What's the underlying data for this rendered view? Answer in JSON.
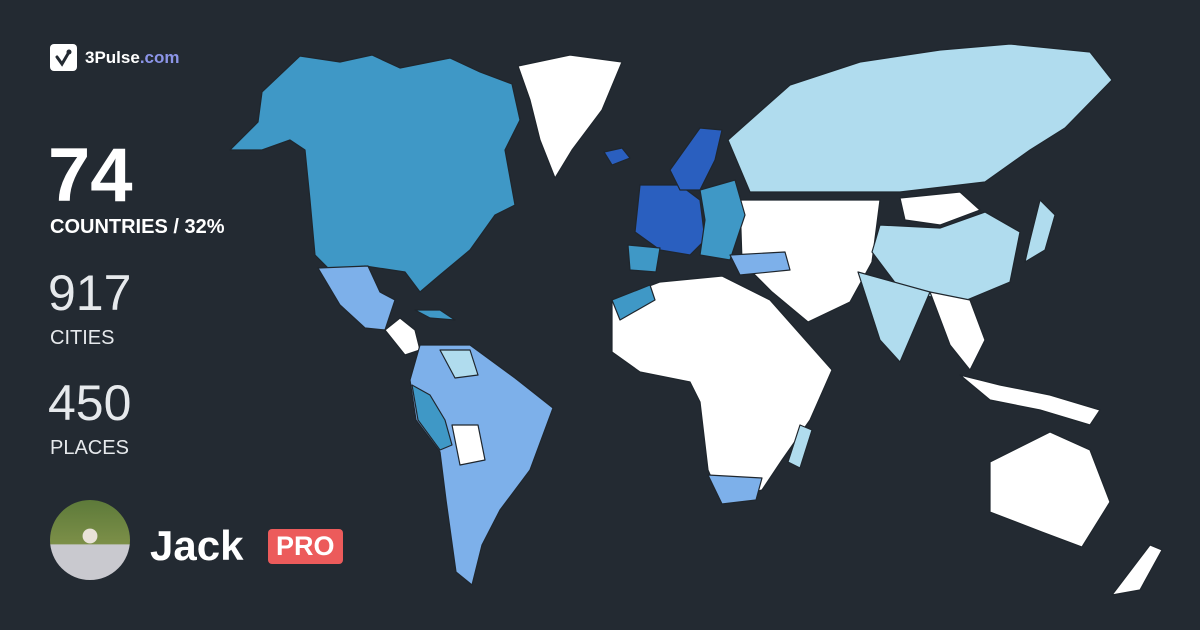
{
  "brand": {
    "name": "3Pulse",
    "domain": ".com",
    "accent": "#8c95e8"
  },
  "stats": {
    "countries": {
      "value": "74",
      "label": "COUNTRIES / 32%"
    },
    "cities": {
      "value": "917",
      "label": "CITIES"
    },
    "places": {
      "value": "450",
      "label": "PLACES"
    }
  },
  "user": {
    "name": "Jack",
    "badge": "PRO",
    "badge_color": "#ec5b5b"
  },
  "map_colors": {
    "background": "#232a32",
    "unvisited": "#ffffff",
    "light": "#b0dcee",
    "medium": "#3f98c6",
    "periwinkle": "#7db0ea",
    "dark": "#2a5fbf"
  }
}
